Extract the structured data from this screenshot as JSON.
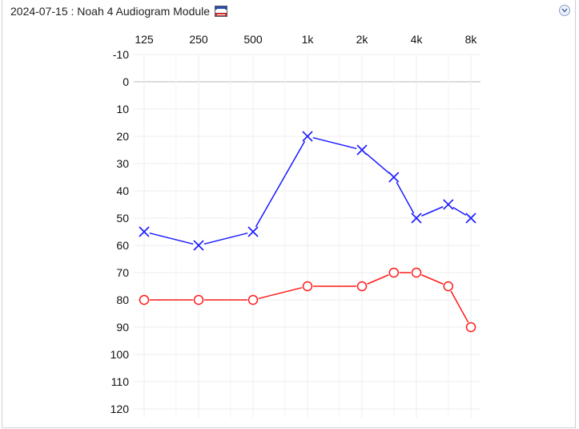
{
  "header": {
    "title": "2024-07-15 : Noah 4 Audiogram Module",
    "flag_icon": "audiogram-flag-icon",
    "collapse_icon": "chevron-down-icon"
  },
  "chart_data": {
    "type": "line",
    "x_scale": "log",
    "x_tick_labels": [
      "125",
      "250",
      "500",
      "1k",
      "2k",
      "4k",
      "8k"
    ],
    "x_ticks": [
      125,
      250,
      500,
      1000,
      2000,
      4000,
      8000
    ],
    "y_tick_labels": [
      "-10",
      "0",
      "10",
      "20",
      "30",
      "40",
      "50",
      "60",
      "70",
      "80",
      "90",
      "100",
      "110",
      "120"
    ],
    "ylim": [
      -10,
      120
    ],
    "y_inverted": true,
    "grid": true,
    "series": [
      {
        "color": "#1a1aff",
        "marker": "x",
        "x": [
          125,
          250,
          500,
          1000,
          2000,
          3000,
          4000,
          6000,
          8000
        ],
        "values": [
          55,
          60,
          55,
          20,
          25,
          35,
          50,
          45,
          50
        ]
      },
      {
        "color": "#ff1a1a",
        "marker": "o",
        "x": [
          125,
          250,
          500,
          1000,
          2000,
          3000,
          4000,
          6000,
          8000
        ],
        "values": [
          80,
          80,
          80,
          75,
          75,
          70,
          70,
          75,
          90
        ]
      }
    ]
  }
}
